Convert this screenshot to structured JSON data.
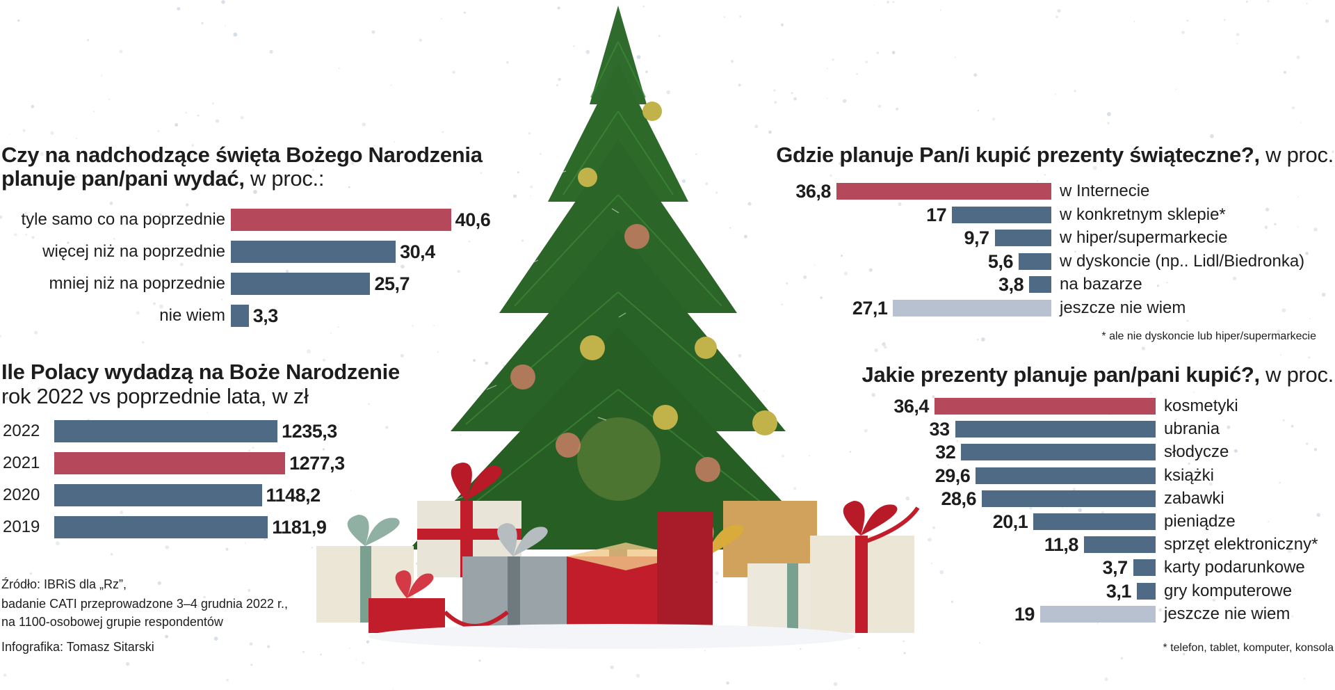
{
  "colors": {
    "highlight": "#b5485a",
    "regular": "#4f6a85",
    "unknown": "#b7c1cf",
    "tree": "#2f6b2c",
    "gift_red": "#c21d2b"
  },
  "chart_data": [
    {
      "id": "spending",
      "type": "bar",
      "orientation": "horizontal",
      "title_bold": "Czy na nadchodzące święta Bożego Narodzenia planuje pan/pani wydać,",
      "title_light": "w proc.:",
      "categories": [
        "tyle samo co na poprzednie",
        "więcej niż na poprzednie",
        "mniej niż na poprzednie",
        "nie wiem"
      ],
      "values": [
        40.6,
        30.4,
        25.7,
        3.3
      ],
      "labels": [
        "40,6",
        "30,4",
        "25,7",
        "3,3"
      ],
      "highlight": [
        0
      ],
      "unknown": []
    },
    {
      "id": "amount",
      "type": "bar",
      "orientation": "horizontal",
      "title_bold": "Ile Polacy wydadzą na Boże Narodzenie",
      "subtitle": "rok 2022 vs poprzednie lata, w zł",
      "categories": [
        "2022",
        "2021",
        "2020",
        "2019"
      ],
      "values": [
        1235.3,
        1277.3,
        1148.2,
        1181.9
      ],
      "labels": [
        "1235,3",
        "1277,3",
        "1148,2",
        "1181,9"
      ],
      "highlight": [
        1
      ],
      "unknown": []
    },
    {
      "id": "where",
      "type": "bar",
      "orientation": "horizontal",
      "title_bold": "Gdzie planuje Pan/i kupić prezenty świąteczne?,",
      "title_light": "w proc.",
      "categories": [
        "w Internecie",
        "w konkretnym sklepie*",
        "w hiper/supermarkecie",
        "w dyskoncie (np.. Lidl/Biedronka)",
        "na bazarze",
        "jeszcze nie wiem"
      ],
      "values": [
        36.8,
        17,
        9.7,
        5.6,
        3.8,
        27.1
      ],
      "labels": [
        "36,8",
        "17",
        "9,7",
        "5,6",
        "3,8",
        "27,1"
      ],
      "highlight": [
        0
      ],
      "unknown": [
        5
      ],
      "footnote": "* ale nie dyskoncie lub hiper/supermarkecie"
    },
    {
      "id": "gifts",
      "type": "bar",
      "orientation": "horizontal",
      "title_bold": "Jakie prezenty planuje pan/pani kupić?,",
      "title_light": "w proc.",
      "categories": [
        "kosmetyki",
        "ubrania",
        "słodycze",
        "książki",
        "zabawki",
        "pieniądze",
        "sprzęt elektroniczny*",
        "karty podarunkowe",
        "gry komputerowe",
        "jeszcze nie wiem"
      ],
      "values": [
        36.4,
        33,
        32,
        29.6,
        28.6,
        20.1,
        11.8,
        3.7,
        3.1,
        19
      ],
      "labels": [
        "36,4",
        "33",
        "32",
        "29,6",
        "28,6",
        "20,1",
        "11,8",
        "3,7",
        "3,1",
        "19"
      ],
      "highlight": [
        0
      ],
      "unknown": [
        9
      ],
      "footnote": "* telefon, tablet, komputer, konsola"
    }
  ],
  "source": {
    "line1": "Źródło: IBRiS dla „Rz”,",
    "line2": "badanie CATI przeprowadzone 3–4 grudnia 2022 r.,",
    "line3": "na 1100-osobowej grupie respondentów",
    "credit": "Infografika: Tomasz Sitarski"
  }
}
